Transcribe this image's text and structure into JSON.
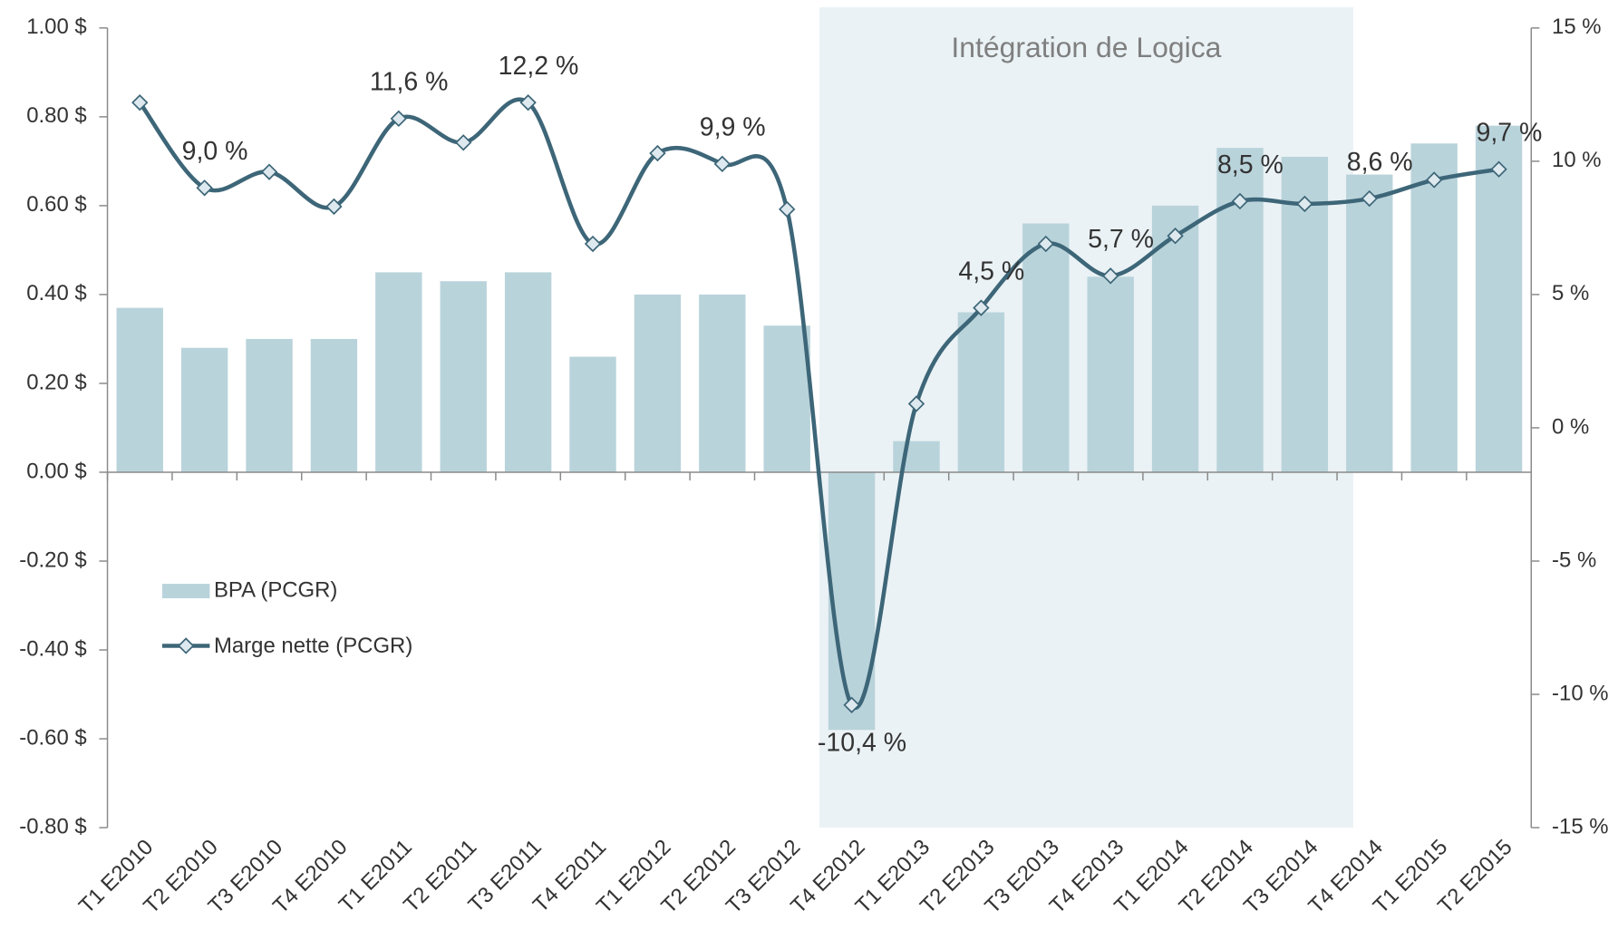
{
  "chart_data": {
    "type": "bar-line",
    "annotation": {
      "text": "Intégration de Logica",
      "from": "T4 E2012",
      "to": "T4 E2014"
    },
    "categories": [
      "T1 E2010",
      "T2 E2010",
      "T3 E2010",
      "T4 E2010",
      "T1 E2011",
      "T2 E2011",
      "T3 E2011",
      "T4 E2011",
      "T1 E2012",
      "T2 E2012",
      "T3 E2012",
      "T4 E2012",
      "T1 E2013",
      "T2 E2013",
      "T3 E2013",
      "T4 E2013",
      "T1 E2014",
      "T2 E2014",
      "T3 E2014",
      "T4 E2014",
      "T1 E2015",
      "T2 E2015"
    ],
    "series": [
      {
        "name": "BPA (PCGR)",
        "type": "bar",
        "color": "#b9d3db",
        "values": [
          0.37,
          0.28,
          0.3,
          0.3,
          0.45,
          0.43,
          0.45,
          0.26,
          0.4,
          0.4,
          0.33,
          -0.58,
          0.07,
          0.36,
          0.56,
          0.44,
          0.6,
          0.73,
          0.71,
          0.67,
          0.74,
          0.78
        ]
      },
      {
        "name": "Marge nette (PCGR)",
        "type": "line",
        "axis": "y2",
        "color": "#3d6678",
        "marker_color": "#dde9ee",
        "values": [
          12.2,
          9.0,
          9.6,
          8.3,
          11.6,
          10.7,
          12.2,
          6.9,
          10.3,
          9.9,
          8.2,
          -10.4,
          0.9,
          4.5,
          6.9,
          5.7,
          7.2,
          8.5,
          8.4,
          8.6,
          9.3,
          9.7
        ],
        "value_labels": [
          null,
          "9,0 %",
          null,
          null,
          "11,6 %",
          null,
          "12,2 %",
          null,
          null,
          "9,9 %",
          null,
          "-10,4 %",
          null,
          "4,5 %",
          null,
          "5,7 %",
          null,
          "8,5 %",
          null,
          "8,6 %",
          null,
          "9,7 %"
        ]
      }
    ],
    "ylim": [
      -0.8,
      1.0
    ],
    "yticks": [
      {
        "value": 1.0,
        "label": "1.00 $"
      },
      {
        "value": 0.8,
        "label": "0.80 $"
      },
      {
        "value": 0.6,
        "label": "0.60 $"
      },
      {
        "value": 0.4,
        "label": "0.40 $"
      },
      {
        "value": 0.2,
        "label": "0.20 $"
      },
      {
        "value": 0,
        "label": "0.00 $"
      },
      {
        "value": -0.2,
        "label": "-0.20 $"
      },
      {
        "value": -0.4,
        "label": "-0.40 $"
      },
      {
        "value": -0.6,
        "label": "-0.60 $"
      },
      {
        "value": -0.8,
        "label": "-0.80 $"
      }
    ],
    "y2lim": [
      -15,
      15
    ],
    "y2ticks": [
      {
        "value": 15,
        "label": "15 %"
      },
      {
        "value": 10,
        "label": "10 %"
      },
      {
        "value": 5,
        "label": "5 %"
      },
      {
        "value": 0,
        "label": "0 %"
      },
      {
        "value": -5,
        "label": "-5 %"
      },
      {
        "value": -10,
        "label": "-10 %"
      },
      {
        "value": -15,
        "label": "-15 %"
      }
    ],
    "grid": false,
    "legend": "left"
  }
}
